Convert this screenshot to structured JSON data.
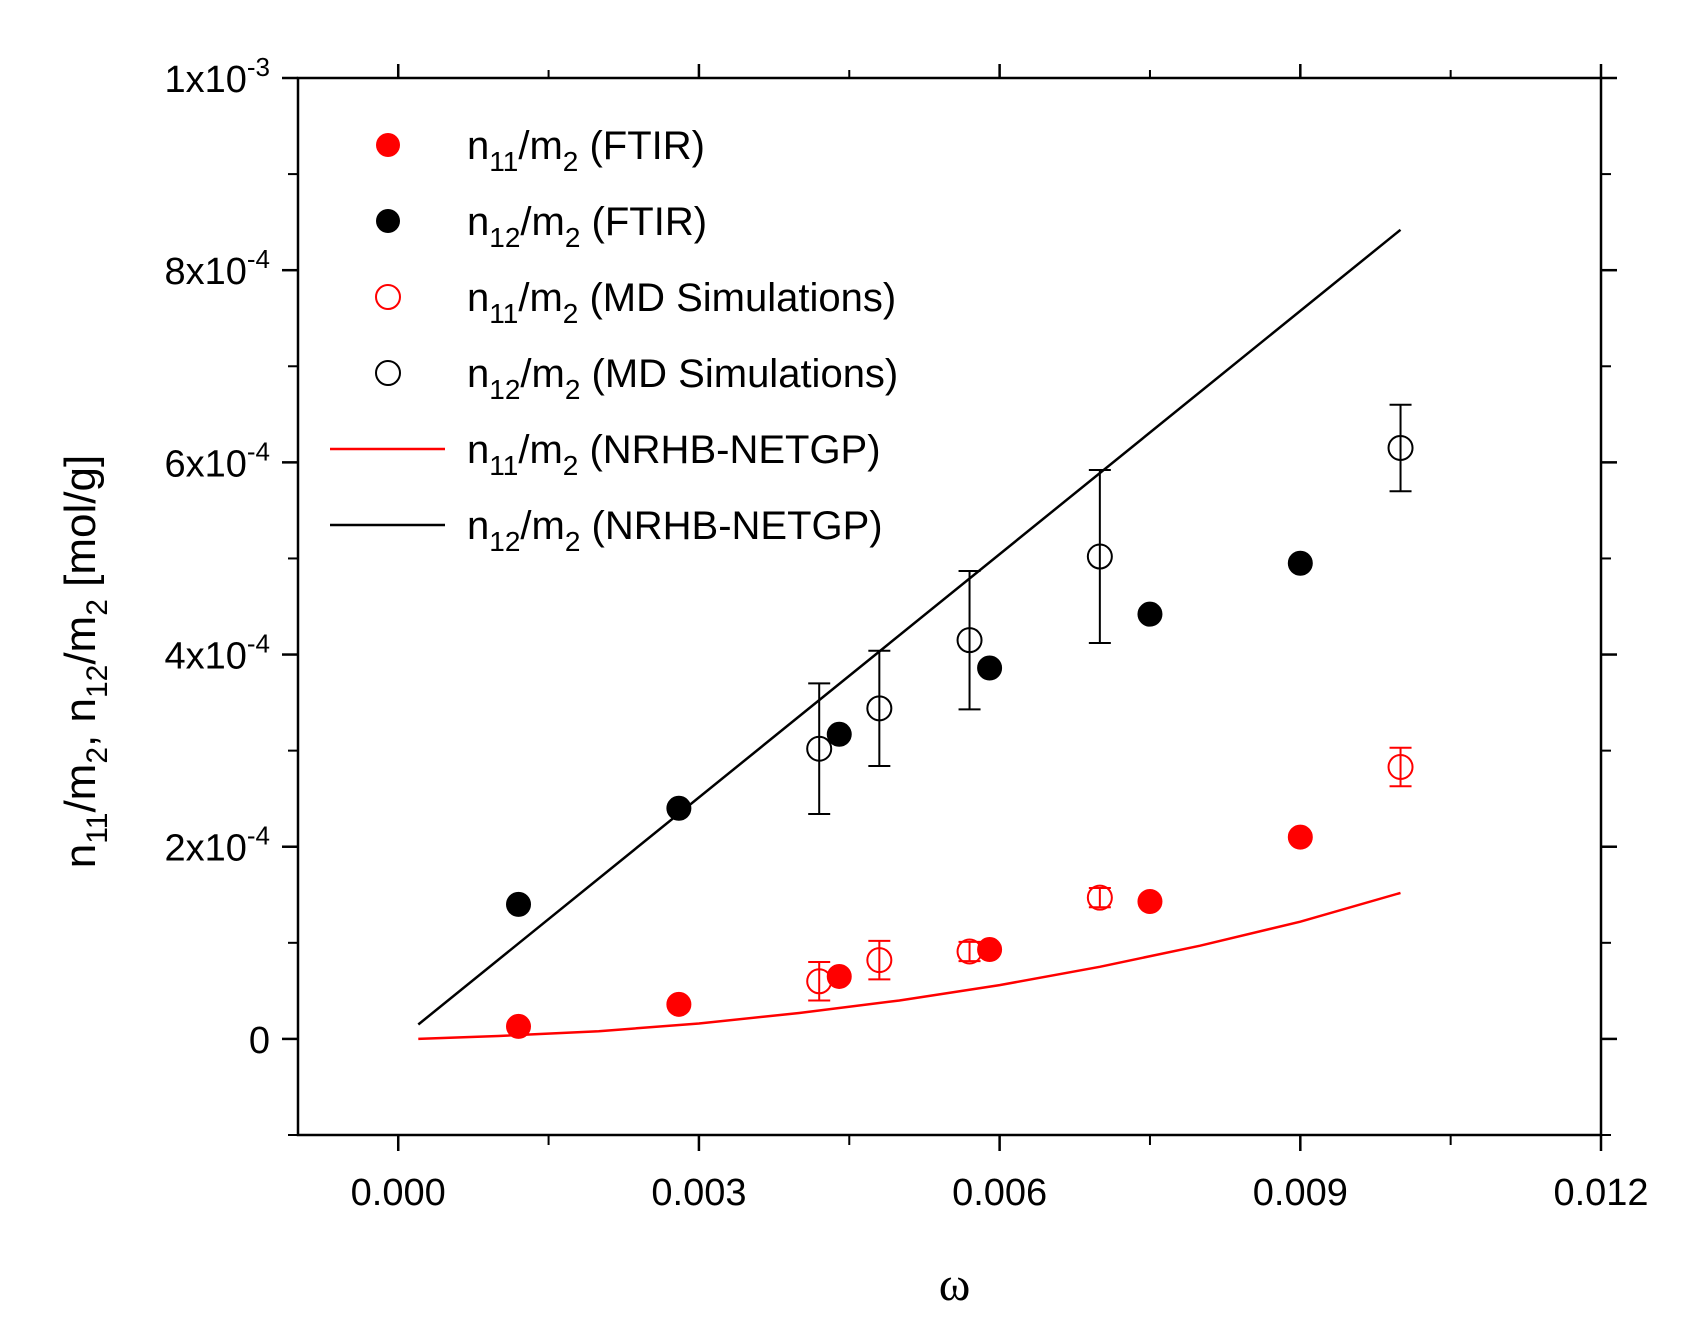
{
  "chart_data": {
    "type": "scatter",
    "xlabel": "ω",
    "ylabel": "n11/m2, n12/m2 [mol/g]",
    "xlim": [
      -0.001,
      0.012
    ],
    "ylim": [
      -0.0001,
      0.001
    ],
    "x_ticks": [
      0.0,
      0.003,
      0.006,
      0.009,
      0.012
    ],
    "x_tick_labels": [
      "0.000",
      "0.003",
      "0.006",
      "0.009",
      "0.012"
    ],
    "y_ticks": [
      0.0,
      0.0002,
      0.0004,
      0.0006,
      0.0008,
      0.001
    ],
    "y_tick_labels": [
      {
        "base": "0",
        "exp": ""
      },
      {
        "base": "2x10",
        "exp": "-4"
      },
      {
        "base": "4x10",
        "exp": "-4"
      },
      {
        "base": "6x10",
        "exp": "-4"
      },
      {
        "base": "8x10",
        "exp": "-4"
      },
      {
        "base": "1x10",
        "exp": "-3"
      }
    ],
    "grid": false,
    "legend_position": "top-left",
    "series": [
      {
        "name": "n11/m2 (FTIR)",
        "label": {
          "n_sub": "11",
          "m_sub": "2",
          "suffix": " (FTIR)"
        },
        "kind": "filled-marker",
        "color": "#ff0000",
        "x": [
          0.0012,
          0.0028,
          0.0044,
          0.0059,
          0.0075,
          0.009
        ],
        "y": [
          1.3e-05,
          3.6e-05,
          6.5e-05,
          9.3e-05,
          0.000143,
          0.00021
        ]
      },
      {
        "name": "n12/m2 (FTIR)",
        "label": {
          "n_sub": "12",
          "m_sub": "2",
          "suffix": " (FTIR)"
        },
        "kind": "filled-marker",
        "color": "#000000",
        "x": [
          0.0012,
          0.0028,
          0.0044,
          0.0059,
          0.0075,
          0.009
        ],
        "y": [
          0.00014,
          0.00024,
          0.000317,
          0.000386,
          0.000442,
          0.000495
        ]
      },
      {
        "name": "n11/m2 (MD Simulations)",
        "label": {
          "n_sub": "11",
          "m_sub": "2",
          "suffix": " (MD Simulations)"
        },
        "kind": "open-marker",
        "color": "#ff0000",
        "x": [
          0.0042,
          0.0048,
          0.0057,
          0.007,
          0.01
        ],
        "y": [
          6e-05,
          8.2e-05,
          9.1e-05,
          0.000147,
          0.000283
        ],
        "err": [
          2e-05,
          2e-05,
          1e-05,
          1e-05,
          2e-05
        ]
      },
      {
        "name": "n12/m2 (MD Simulations)",
        "label": {
          "n_sub": "12",
          "m_sub": "2",
          "suffix": " (MD Simulations)"
        },
        "kind": "open-marker",
        "color": "#000000",
        "x": [
          0.0042,
          0.0048,
          0.0057,
          0.007,
          0.01
        ],
        "y": [
          0.000302,
          0.000344,
          0.000415,
          0.000502,
          0.000615
        ],
        "err": [
          6.8e-05,
          6e-05,
          7.2e-05,
          9e-05,
          4.5e-05
        ]
      },
      {
        "name": "n11/m2 (NRHB-NETGP)",
        "label": {
          "n_sub": "11",
          "m_sub": "2",
          "suffix": " (NRHB-NETGP)"
        },
        "kind": "line",
        "color": "#ff0000",
        "x": [
          0.0002,
          0.001,
          0.002,
          0.003,
          0.004,
          0.005,
          0.006,
          0.007,
          0.008,
          0.009,
          0.01
        ],
        "y": [
          0.0,
          3e-06,
          8e-06,
          1.6e-05,
          2.7e-05,
          4e-05,
          5.6e-05,
          7.5e-05,
          9.7e-05,
          0.000122,
          0.000152
        ]
      },
      {
        "name": "n12/m2 (NRHB-NETGP)",
        "label": {
          "n_sub": "12",
          "m_sub": "2",
          "suffix": " (NRHB-NETGP)"
        },
        "kind": "line",
        "color": "#000000",
        "x": [
          0.0002,
          0.01
        ],
        "y": [
          1.5e-05,
          0.000842
        ]
      }
    ]
  }
}
